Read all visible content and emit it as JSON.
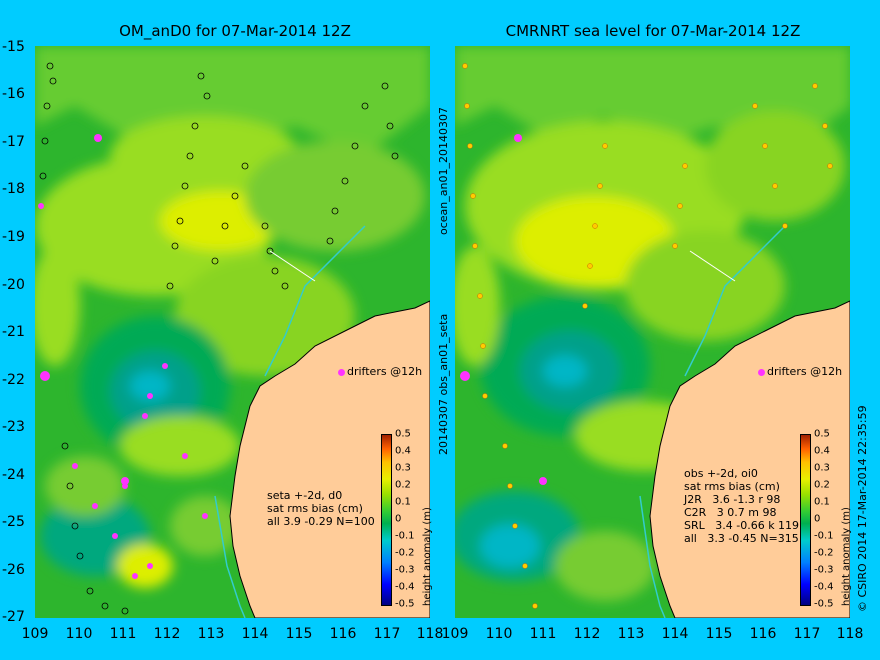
{
  "titles": {
    "left": "OM_anD0 for 07-Mar-2014 12Z",
    "right": "CMRNRT sea level  for 07-Mar-2014 12Z"
  },
  "axes": {
    "y_ticks": [
      "-15",
      "-16",
      "-17",
      "-18",
      "-19",
      "-20",
      "-21",
      "-22",
      "-23",
      "-24",
      "-25",
      "-26",
      "-27"
    ],
    "x_ticks": [
      "109",
      "110",
      "111",
      "112",
      "113",
      "114",
      "115",
      "116",
      "117",
      "118"
    ],
    "x_range": [
      109,
      118
    ],
    "y_range": [
      -27,
      -15
    ]
  },
  "colorbar": {
    "labels": [
      "0.5",
      "0.4",
      "0.3",
      "0.2",
      "0.1",
      "0",
      "-0.1",
      "-0.2",
      "-0.3",
      "-0.4",
      "-0.5"
    ],
    "title": "height anomaly (m)",
    "colors": [
      "#000080",
      "#0000ff",
      "#0080ff",
      "#00cccc",
      "#00b050",
      "#33cc33",
      "#99e000",
      "#e8f000",
      "#ffc000",
      "#ff6000",
      "#a02000"
    ]
  },
  "left_info": {
    "l1": "seta +-2d, d0",
    "l2": "sat rms bias (cm)",
    "l3": "all 3.9 -0.29 N=100"
  },
  "right_info": {
    "l1": "obs +-2d, oi0",
    "l2": "sat rms bias (cm)",
    "l3": "J2R   3.6 -1.3 r 98",
    "l4": "C2R   3 0.7 m 98",
    "l5": "SRL   3.4 -0.66 k 119",
    "l6": "all   3.3 -0.45 N=315"
  },
  "drifters": "drifters @12h",
  "side_labels": {
    "upper": "ocean_an01_20140307",
    "lower": "20140307 obs_an01_seta"
  },
  "credit": "© CSIRO 2014  17-Mar-2014 22:35:59",
  "colors": {
    "background": "#00ccff",
    "land": "#ffcc99",
    "sea_base": "#2db52d",
    "drifter": "#ff33ff",
    "track": "#33cccc"
  }
}
